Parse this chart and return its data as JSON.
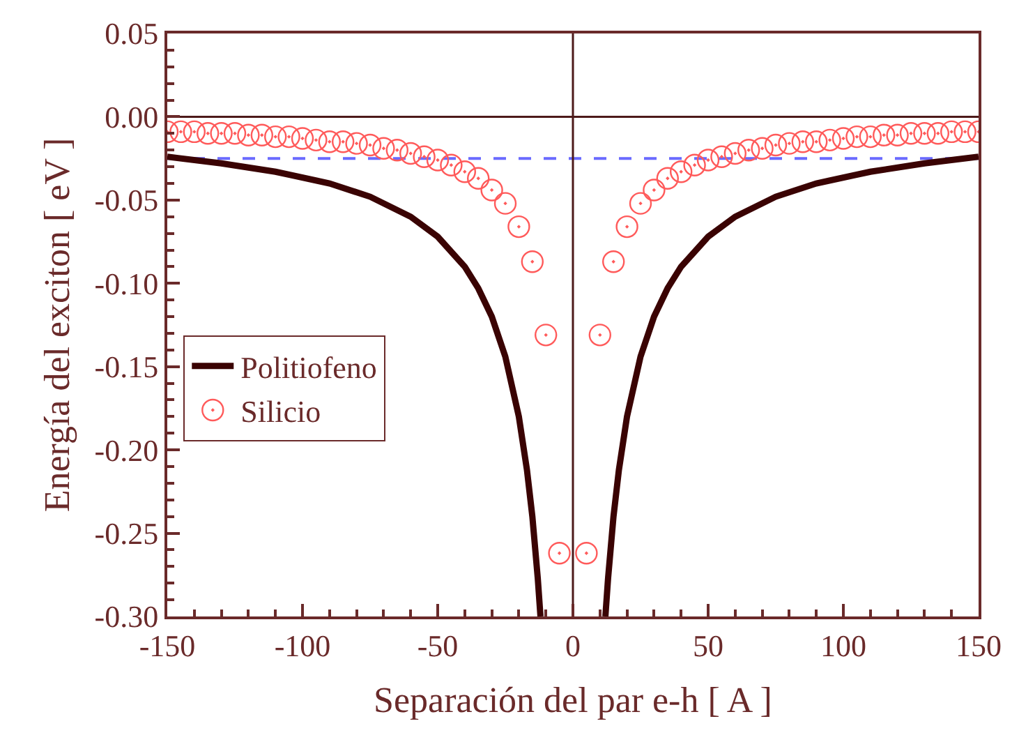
{
  "chart_data": {
    "type": "line",
    "xlabel": "Separación del par e-h [ A ]",
    "ylabel": "Energía del exciton [ eV ]",
    "xlim": [
      -150,
      150
    ],
    "xticks": [
      -150,
      -100,
      -50,
      0,
      50,
      100,
      150
    ],
    "ylim": [
      -0.3,
      0.05
    ],
    "yticks": [
      {
        "value": -0.3,
        "label": "-0.30"
      },
      {
        "value": -0.25,
        "label": "-0.25"
      },
      {
        "value": -0.2,
        "label": "-0.20"
      },
      {
        "value": -0.15,
        "label": "-0.15"
      },
      {
        "value": -0.1,
        "label": "-0.10"
      },
      {
        "value": -0.05,
        "label": "-0.05"
      },
      {
        "value": 0,
        "label": "0.00"
      },
      {
        "value": 0.05,
        "label": "0.05"
      }
    ],
    "grid": false,
    "legend": "bottom left",
    "series": [
      {
        "name": "Politiofeno",
        "color": "#3a0303",
        "marker": "none",
        "line_style": "solid",
        "x": [
          -150,
          -130,
          -110,
          -90,
          -75,
          -60,
          -50,
          -40,
          -35,
          -30,
          -25,
          -20,
          -17,
          -15,
          -13,
          -12,
          0,
          12,
          13,
          15,
          17,
          20,
          25,
          30,
          35,
          40,
          50,
          60,
          75,
          90,
          110,
          130,
          150
        ],
        "values": [
          -0.024,
          -0.028,
          -0.033,
          -0.04,
          -0.048,
          -0.06,
          -0.072,
          -0.09,
          -0.103,
          -0.12,
          -0.144,
          -0.18,
          -0.212,
          -0.24,
          -0.277,
          -0.3,
          null,
          -0.3,
          -0.277,
          -0.24,
          -0.212,
          -0.18,
          -0.144,
          -0.12,
          -0.103,
          -0.09,
          -0.072,
          -0.06,
          -0.048,
          -0.04,
          -0.033,
          -0.028,
          -0.024
        ]
      },
      {
        "name": "Silicio",
        "type": "scatter",
        "color": "#ff5a5a",
        "marker": "circle",
        "x": [
          -150,
          -145,
          -140,
          -135,
          -130,
          -125,
          -120,
          -115,
          -110,
          -105,
          -100,
          -95,
          -90,
          -85,
          -80,
          -75,
          -70,
          -65,
          -60,
          -55,
          -50,
          -45,
          -40,
          -35,
          -30,
          -25,
          -20,
          -15,
          -10,
          -5,
          5,
          10,
          15,
          20,
          25,
          30,
          35,
          40,
          45,
          50,
          55,
          60,
          65,
          70,
          75,
          80,
          85,
          90,
          95,
          100,
          105,
          110,
          115,
          120,
          125,
          130,
          135,
          140,
          145,
          150
        ],
        "values": [
          -0.009,
          -0.009,
          -0.009,
          -0.01,
          -0.01,
          -0.01,
          -0.011,
          -0.011,
          -0.012,
          -0.012,
          -0.013,
          -0.014,
          -0.015,
          -0.015,
          -0.016,
          -0.017,
          -0.019,
          -0.02,
          -0.022,
          -0.024,
          -0.026,
          -0.029,
          -0.033,
          -0.037,
          -0.044,
          -0.052,
          -0.066,
          -0.087,
          -0.131,
          -0.262,
          -0.262,
          -0.131,
          -0.087,
          -0.066,
          -0.052,
          -0.044,
          -0.037,
          -0.033,
          -0.029,
          -0.026,
          -0.024,
          -0.022,
          -0.02,
          -0.019,
          -0.017,
          -0.016,
          -0.015,
          -0.015,
          -0.014,
          -0.013,
          -0.012,
          -0.012,
          -0.011,
          -0.011,
          -0.01,
          -0.01,
          -0.01,
          -0.009,
          -0.009,
          -0.009
        ]
      }
    ],
    "ref_lines": [
      {
        "axis": "y",
        "value": -0.025,
        "color": "#6a6aff",
        "line_style": "dashed"
      },
      {
        "axis": "y",
        "value": 0,
        "color": "#4d1a1a",
        "line_style": "solid"
      },
      {
        "axis": "x",
        "value": 0,
        "color": "#4d1a1a",
        "line_style": "solid"
      }
    ]
  }
}
